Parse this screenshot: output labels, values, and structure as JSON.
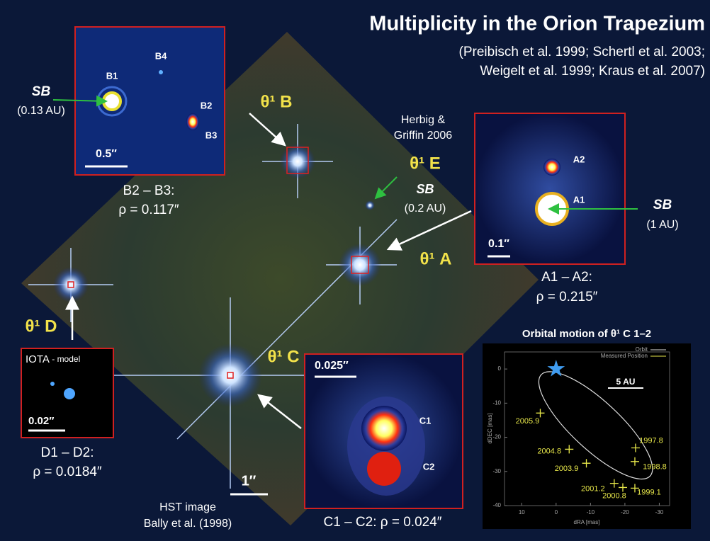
{
  "figure": {
    "title": "Multiplicity in the Orion Trapezium",
    "references": [
      "(Preibisch et al. 1999; Schertl et al. 2003;",
      "Weigelt et al. 1999; Kraus et al. 2007)"
    ],
    "b_inset": {
      "labels": [
        "B1",
        "B4",
        "B2",
        "B3"
      ],
      "scale": "0.5″",
      "sb": "SB",
      "sb_sep": "(0.13 AU)",
      "pair": "B2 – B3:",
      "rho": "ρ = 0.117″"
    },
    "star_b": "θ¹ B",
    "herbig": [
      "Herbig &",
      "Griffin 2006"
    ],
    "star_e": "θ¹ E",
    "e_sb": "SB",
    "e_sep": "(0.2 AU)",
    "a_inset": {
      "labels": [
        "A2",
        "A1"
      ],
      "scale": "0.1″",
      "sb": "SB",
      "sb_sep": "(1 AU)",
      "pair": "A1 – A2:",
      "rho": "ρ = 0.215″"
    },
    "star_a": "θ¹ A",
    "star_d": "θ¹ D",
    "d_inset": {
      "title": "IOTA",
      "subtitle": "- model",
      "scale": "0.02″",
      "pair": "D1 – D2:",
      "rho": "ρ = 0.0184″"
    },
    "star_c": "θ¹ C",
    "c_inset": {
      "labels": [
        "C1",
        "C2"
      ],
      "scale": "0.025″",
      "caption": "C1 – C2:  ρ = 0.024″"
    },
    "hst_scale": "1″",
    "hst_credit": [
      "HST image",
      "Bally et al. (1998)"
    ]
  },
  "chart_data": {
    "type": "scatter",
    "title": "Orbital motion of  θ¹ C 1–2",
    "x_label": "dRA [mas]",
    "y_label": "dDEC [mas]",
    "orbit_label": "Orbit",
    "scale_bar": "5 AU",
    "xlim": [
      15,
      -33
    ],
    "ylim": [
      -40,
      5
    ],
    "xticks": [
      10,
      0,
      -10,
      -20,
      -30
    ],
    "yticks": [
      0,
      -10,
      -20,
      -30,
      -40
    ],
    "series": [
      {
        "name": "Measured Position",
        "color": "#e8e84a",
        "x": [
          4.6,
          -3.8,
          -8.8,
          -16.9,
          -19.4,
          -22.9,
          -22.9,
          -23.1
        ],
        "values": [
          -12.9,
          -23.5,
          -27.6,
          -33.5,
          -34.7,
          -34.9,
          -27.1,
          -23.1
        ],
        "point_labels": [
          "2005.9",
          "2004.8",
          "2003.9",
          "2001.2",
          "2000.8",
          "1999.1",
          "1998.8",
          "1997.8"
        ]
      }
    ]
  }
}
